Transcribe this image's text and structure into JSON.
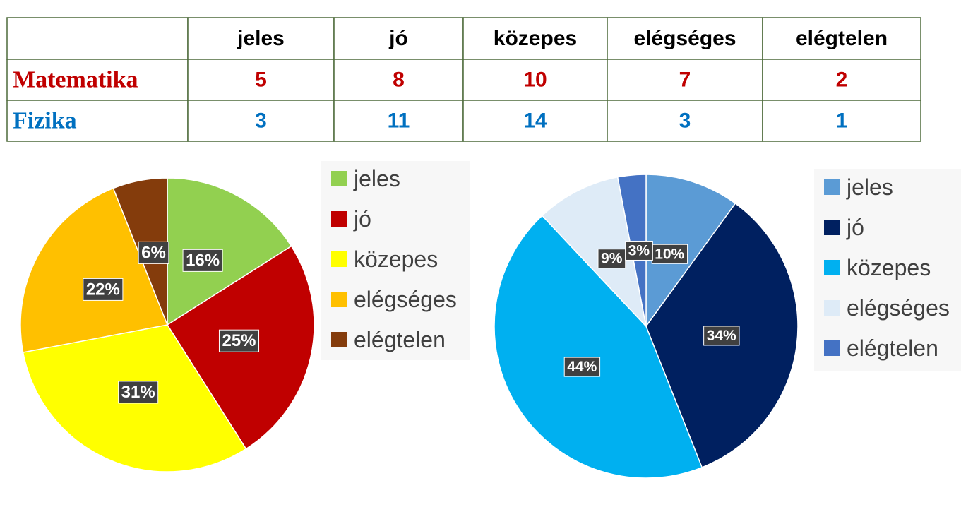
{
  "table": {
    "columns": [
      "jeles",
      "jó",
      "közepes",
      "elégséges",
      "elégtelen"
    ],
    "rows": [
      {
        "label": "Matematika",
        "color": "#c00000",
        "values": [
          5,
          8,
          10,
          7,
          2
        ]
      },
      {
        "label": "Fizika",
        "color": "#0070c0",
        "values": [
          3,
          11,
          14,
          3,
          1
        ]
      }
    ]
  },
  "chart_data": [
    {
      "type": "pie",
      "categories": [
        "jeles",
        "jó",
        "közepes",
        "elégséges",
        "elégtelen"
      ],
      "values": [
        16,
        25,
        31,
        22,
        6
      ],
      "value_labels": [
        "16%",
        "25%",
        "31%",
        "22%",
        "6%"
      ],
      "colors": [
        "#92d050",
        "#c00000",
        "#ffff00",
        "#ffc000",
        "#843c0c"
      ],
      "legend": "right"
    },
    {
      "type": "pie",
      "categories": [
        "jeles",
        "jó",
        "közepes",
        "elégséges",
        "elégtelen"
      ],
      "values": [
        10,
        34,
        44,
        9,
        3
      ],
      "value_labels": [
        "10%",
        "34%",
        "44%",
        "9%",
        "3%"
      ],
      "colors": [
        "#5b9bd5",
        "#002060",
        "#00b0f0",
        "#deebf7",
        "#4472c4"
      ],
      "legend": "right"
    }
  ]
}
